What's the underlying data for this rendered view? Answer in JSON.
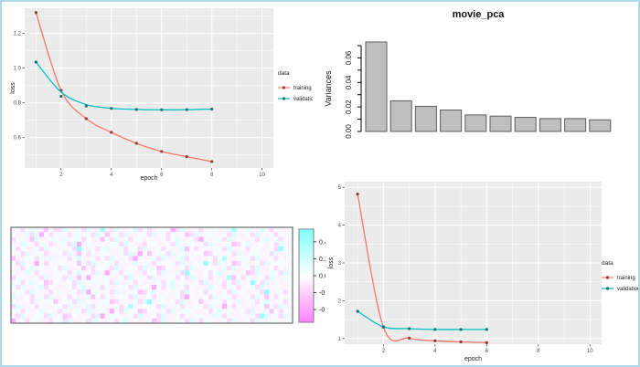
{
  "page": {
    "background": "#ffffff",
    "border_color": "#aed9e6"
  },
  "chart_data": [
    {
      "type": "line",
      "name": "training-loss-top-left",
      "xlabel": "epoch",
      "ylabel": "loss",
      "xlim": [
        0.55,
        10.45
      ],
      "ylim": [
        0.425,
        1.345
      ],
      "xticks": [
        2,
        4,
        6,
        8,
        10
      ],
      "xminor": [
        1,
        3,
        5,
        7,
        9
      ],
      "yticks": [
        0.6,
        0.8,
        1.0,
        1.2
      ],
      "ytick_labels": [
        "0.6",
        "0.8",
        "1.0",
        "1.2"
      ],
      "yminor": [
        0.5,
        0.7,
        0.9,
        1.1,
        1.3
      ],
      "panel_bg": "#EBEBEB",
      "legend_title": "data",
      "legend_position": "right",
      "series": [
        {
          "name": "training",
          "color": "#F8766D",
          "point_color": "#8e3d38",
          "x": [
            1,
            2,
            3,
            4,
            5,
            6,
            7,
            8
          ],
          "y": [
            1.32,
            0.872,
            0.709,
            0.63,
            0.567,
            0.52,
            0.49,
            0.462
          ]
        },
        {
          "name": "validation",
          "color": "#00BFC4",
          "point_color": "#0f7074",
          "x": [
            1,
            2,
            3,
            4,
            5,
            6,
            7,
            8
          ],
          "y": [
            1.035,
            0.838,
            0.782,
            0.768,
            0.762,
            0.76,
            0.761,
            0.764
          ],
          "line_y": [
            1.035,
            0.862,
            0.79,
            0.769,
            0.762,
            0.76,
            0.761,
            0.764
          ]
        }
      ]
    },
    {
      "type": "bar",
      "name": "pca-scree-plot",
      "title": "movie_pca",
      "ylabel": "Variances",
      "values": [
        0.073,
        0.025,
        0.0205,
        0.0175,
        0.0135,
        0.0125,
        0.0115,
        0.0105,
        0.0105,
        0.0095
      ],
      "axis_max": 0.07,
      "tick_step": 0.01,
      "labeled_ticks": [
        0.0,
        0.02,
        0.04,
        0.06
      ],
      "labeled_tick_text": [
        "0.00",
        "0.02",
        "0.04",
        "0.06"
      ],
      "bar_fill": "#bfbfbf",
      "bar_stroke": "#5e5e5e",
      "grid": false
    },
    {
      "type": "heatmap",
      "name": "weights-heatmap",
      "range": [
        -0.55,
        0.55
      ],
      "key_ticks": [
        0.4,
        0.2,
        0.0,
        -0.2,
        -0.4
      ],
      "key_tick_labels": [
        "0.4",
        "0.2",
        "0.0",
        "-0.2",
        "-0.4"
      ],
      "color_positive": "#80FFFF",
      "color_mid": "#FFFFFF",
      "color_negative": "#FF80FF",
      "cell_encoding": "digit d maps to value (d-4.5)/10",
      "rows": [
        "453564425336445364495364456353455413644535454468545446535445",
        "544636153545355453652453644553645354523645544536445364453545",
        "355426445546455354425364535545445356445315455364544535645354",
        "446543553455361454454553654435544536455453644552356445453644",
        "535445364544539545356445355364453544625354455364453554453954",
        "453645534453642535455445364152455364544552354453644554536445",
        "244553546445356445353644531545536445635444535844555364453545",
        "536441535454452536445535446454354553644549536452354453645554",
        "453564544536445253554364455364523544536445544536445364453545",
        "544653544545356453641453554435536445395445356454452364455364",
        "355445364453642515455445364553644553536445354482535445364455",
        "453564523544536455545364453545453564544536445353644953645445",
        "536445635444535644535445536454153564535444654355345536445445",
        "455365443554453615545364455235644545364453544536454453954535",
        "644535536445354462535445536445355445315445364553445364253545",
        "544536455245536454455235445369455453644524455354644535644535",
        "364453544553644563544453584455536445354553644153545445253644",
        "553544645435455364454153645235445364555445356454453644525355",
        "436445536452354453614554453644536445354554465354454539645364",
        "145355443553644536544535645445236445536435544536445364455445"
      ]
    },
    {
      "type": "line",
      "name": "training-loss-bottom-right",
      "xlabel": "epoch",
      "ylabel": "loss",
      "xlim": [
        0.5,
        10.45
      ],
      "ylim": [
        0.85,
        5.15
      ],
      "xticks": [
        2,
        4,
        6,
        8,
        10
      ],
      "xminor": [
        1,
        3,
        5,
        7,
        9
      ],
      "yticks": [
        1,
        2,
        3,
        4,
        5
      ],
      "ytick_labels": [
        "1",
        "2",
        "3",
        "4",
        "5"
      ],
      "yminor": [
        1.5,
        2.5,
        3.5,
        4.5
      ],
      "panel_bg": "#EBEBEB",
      "legend_title": "data",
      "legend_position": "right",
      "series": [
        {
          "name": "training",
          "color": "#F8766D",
          "point_color": "#8e3d38",
          "x": [
            1,
            2,
            3,
            4,
            5,
            6
          ],
          "y": [
            4.82,
            1.3,
            1.01,
            0.94,
            0.91,
            0.89
          ]
        },
        {
          "name": "validation",
          "color": "#00BFC4",
          "point_color": "#0f7074",
          "x": [
            1,
            2,
            3,
            4,
            5,
            6
          ],
          "y": [
            1.72,
            1.31,
            1.26,
            1.24,
            1.24,
            1.24
          ]
        }
      ]
    }
  ]
}
